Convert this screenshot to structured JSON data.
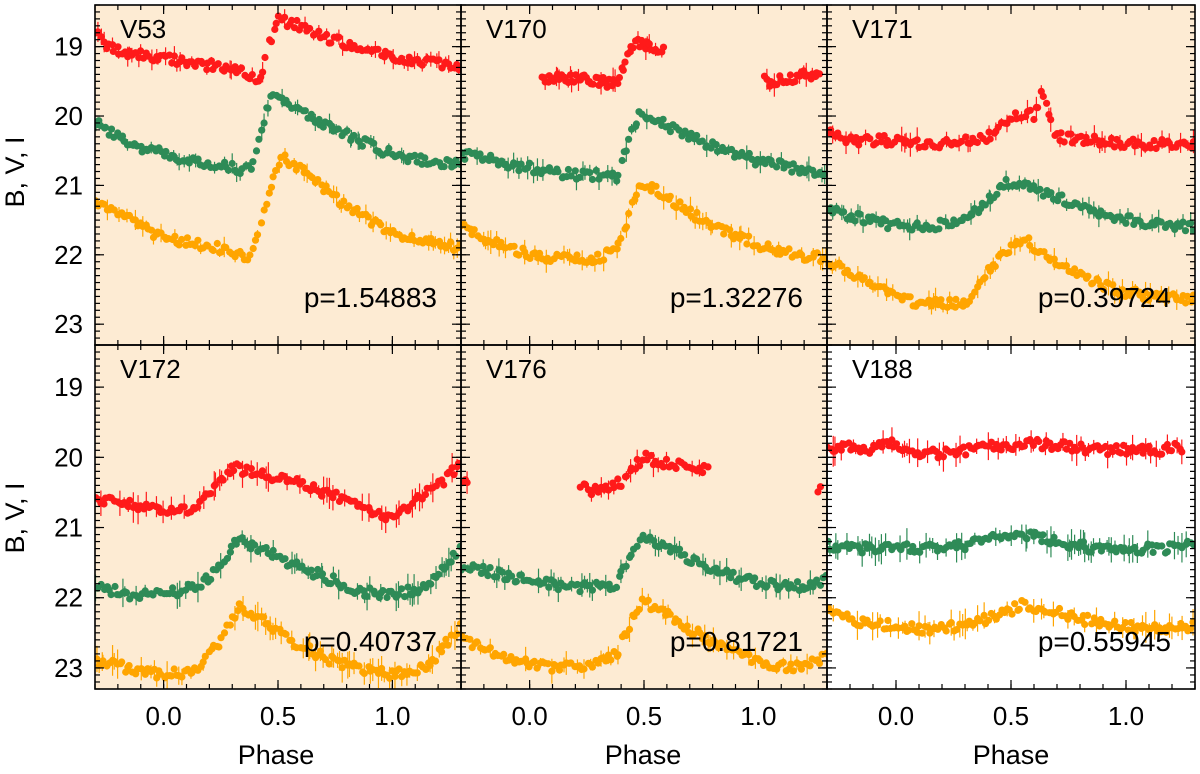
{
  "figure": {
    "x_axis_label": "Phase",
    "y_axis_label": "B, V, I",
    "colors": {
      "I_band": "#ff1a1a",
      "V_band": "#2e8b57",
      "B_band": "#ffa500",
      "shaded_background": "#fdebd3",
      "plain_background": "#ffffff"
    }
  },
  "chart_data": [
    {
      "type": "scatter",
      "star": "V53",
      "period_label": "p=1.54883",
      "period": 1.54883,
      "shaded": true,
      "xlim": [
        -0.3,
        1.3
      ],
      "ylim": [
        23.3,
        18.4
      ],
      "y_inverted": true,
      "xticks": [
        0.0,
        0.5,
        1.0
      ],
      "yticks": [
        19,
        20,
        21,
        22,
        23
      ],
      "light_curves": {
        "I": [
          [
            -0.3,
            18.8
          ],
          [
            -0.25,
            19.0
          ],
          [
            -0.15,
            19.1
          ],
          [
            0.0,
            19.15
          ],
          [
            0.15,
            19.25
          ],
          [
            0.3,
            19.3
          ],
          [
            0.36,
            19.4
          ],
          [
            0.42,
            19.45
          ],
          [
            0.46,
            19.0
          ],
          [
            0.5,
            18.62
          ],
          [
            0.6,
            18.7
          ],
          [
            0.7,
            18.85
          ],
          [
            0.82,
            19.0
          ],
          [
            0.95,
            19.1
          ],
          [
            1.1,
            19.2
          ],
          [
            1.3,
            19.3
          ]
        ],
        "V": [
          [
            -0.3,
            20.1
          ],
          [
            -0.2,
            20.3
          ],
          [
            -0.1,
            20.45
          ],
          [
            0.0,
            20.55
          ],
          [
            0.1,
            20.65
          ],
          [
            0.2,
            20.7
          ],
          [
            0.3,
            20.75
          ],
          [
            0.38,
            20.78
          ],
          [
            0.42,
            20.3
          ],
          [
            0.47,
            19.65
          ],
          [
            0.55,
            19.8
          ],
          [
            0.7,
            20.1
          ],
          [
            0.85,
            20.35
          ],
          [
            1.0,
            20.55
          ],
          [
            1.15,
            20.65
          ],
          [
            1.3,
            20.7
          ]
        ],
        "B": [
          [
            -0.3,
            21.2
          ],
          [
            -0.2,
            21.4
          ],
          [
            -0.1,
            21.6
          ],
          [
            0.0,
            21.75
          ],
          [
            0.15,
            21.85
          ],
          [
            0.3,
            21.95
          ],
          [
            0.38,
            22.05
          ],
          [
            0.42,
            21.6
          ],
          [
            0.47,
            21.0
          ],
          [
            0.52,
            20.6
          ],
          [
            0.65,
            20.9
          ],
          [
            0.8,
            21.3
          ],
          [
            0.95,
            21.6
          ],
          [
            1.1,
            21.8
          ],
          [
            1.3,
            21.9
          ]
        ]
      },
      "error_bar_size": 0.1
    },
    {
      "type": "scatter",
      "star": "V170",
      "period_label": "p=1.32276",
      "period": 1.32276,
      "shaded": true,
      "xlim": [
        -0.3,
        1.3
      ],
      "ylim": [
        23.3,
        18.4
      ],
      "y_inverted": true,
      "xticks": [
        0.0,
        0.5,
        1.0
      ],
      "yticks": [
        19,
        20,
        21,
        22,
        23
      ],
      "light_curves": {
        "I": [
          [
            0.05,
            19.5
          ],
          [
            0.15,
            19.45
          ],
          [
            0.22,
            19.45
          ],
          [
            0.3,
            19.5
          ],
          [
            0.38,
            19.55
          ],
          [
            0.45,
            18.95
          ],
          [
            0.5,
            18.95
          ],
          [
            0.56,
            19.05
          ],
          [
            1.05,
            19.5
          ],
          [
            1.15,
            19.45
          ],
          [
            1.2,
            19.4
          ],
          [
            1.27,
            19.45
          ]
        ],
        "V": [
          [
            -0.3,
            20.55
          ],
          [
            -0.2,
            20.6
          ],
          [
            -0.1,
            20.7
          ],
          [
            0.0,
            20.75
          ],
          [
            0.1,
            20.8
          ],
          [
            0.2,
            20.85
          ],
          [
            0.3,
            20.85
          ],
          [
            0.38,
            20.9
          ],
          [
            0.43,
            20.4
          ],
          [
            0.48,
            19.95
          ],
          [
            0.55,
            20.05
          ],
          [
            0.7,
            20.3
          ],
          [
            0.85,
            20.5
          ],
          [
            1.0,
            20.65
          ],
          [
            1.15,
            20.75
          ],
          [
            1.3,
            20.9
          ]
        ],
        "B": [
          [
            -0.3,
            21.6
          ],
          [
            -0.2,
            21.75
          ],
          [
            -0.1,
            21.9
          ],
          [
            0.0,
            22.0
          ],
          [
            0.1,
            22.05
          ],
          [
            0.2,
            22.05
          ],
          [
            0.3,
            22.05
          ],
          [
            0.38,
            21.9
          ],
          [
            0.43,
            21.5
          ],
          [
            0.48,
            21.0
          ],
          [
            0.55,
            21.05
          ],
          [
            0.7,
            21.4
          ],
          [
            0.85,
            21.65
          ],
          [
            1.0,
            21.85
          ],
          [
            1.15,
            22.0
          ],
          [
            1.3,
            22.05
          ]
        ]
      },
      "error_bar_size": 0.12
    },
    {
      "type": "scatter",
      "star": "V171",
      "period_label": "p=0.39724",
      "period": 0.39724,
      "shaded": true,
      "xlim": [
        -0.3,
        1.3
      ],
      "ylim": [
        23.3,
        18.4
      ],
      "y_inverted": true,
      "xticks": [
        0.0,
        0.5,
        1.0
      ],
      "yticks": [
        19,
        20,
        21,
        22,
        23
      ],
      "light_curves": {
        "I": [
          [
            -0.3,
            20.2
          ],
          [
            -0.2,
            20.35
          ],
          [
            -0.05,
            20.35
          ],
          [
            0.1,
            20.4
          ],
          [
            0.25,
            20.4
          ],
          [
            0.4,
            20.3
          ],
          [
            0.5,
            20.05
          ],
          [
            0.55,
            19.95
          ],
          [
            0.6,
            20.0
          ],
          [
            0.63,
            19.65
          ],
          [
            0.7,
            20.3
          ],
          [
            0.85,
            20.35
          ],
          [
            1.0,
            20.4
          ],
          [
            1.15,
            20.4
          ],
          [
            1.3,
            20.4
          ]
        ],
        "V": [
          [
            -0.3,
            21.35
          ],
          [
            -0.2,
            21.45
          ],
          [
            -0.05,
            21.55
          ],
          [
            0.1,
            21.6
          ],
          [
            0.25,
            21.55
          ],
          [
            0.38,
            21.3
          ],
          [
            0.47,
            20.95
          ],
          [
            0.55,
            20.95
          ],
          [
            0.65,
            21.1
          ],
          [
            0.8,
            21.3
          ],
          [
            0.95,
            21.45
          ],
          [
            1.1,
            21.55
          ],
          [
            1.3,
            21.6
          ]
        ],
        "B": [
          [
            -0.3,
            22.1
          ],
          [
            -0.15,
            22.35
          ],
          [
            0.0,
            22.6
          ],
          [
            0.1,
            22.7
          ],
          [
            0.2,
            22.7
          ],
          [
            0.3,
            22.7
          ],
          [
            0.4,
            22.2
          ],
          [
            0.5,
            21.9
          ],
          [
            0.55,
            21.75
          ],
          [
            0.65,
            22.0
          ],
          [
            0.8,
            22.3
          ],
          [
            0.95,
            22.5
          ],
          [
            1.1,
            22.6
          ],
          [
            1.3,
            22.65
          ]
        ]
      },
      "error_bar_size": 0.12
    },
    {
      "type": "scatter",
      "star": "V172",
      "period_label": "p=0.40737",
      "period": 0.40737,
      "shaded": true,
      "xlim": [
        -0.3,
        1.3
      ],
      "ylim": [
        23.3,
        18.4
      ],
      "y_inverted": true,
      "xticks": [
        0.0,
        0.5,
        1.0
      ],
      "yticks": [
        19,
        20,
        21,
        22,
        23
      ],
      "light_curves": {
        "I": [
          [
            -0.3,
            20.6
          ],
          [
            -0.2,
            20.65
          ],
          [
            -0.1,
            20.7
          ],
          [
            0.0,
            20.8
          ],
          [
            0.15,
            20.7
          ],
          [
            0.22,
            20.4
          ],
          [
            0.3,
            20.15
          ],
          [
            0.38,
            20.2
          ],
          [
            0.48,
            20.3
          ],
          [
            0.58,
            20.35
          ],
          [
            0.7,
            20.5
          ],
          [
            0.8,
            20.6
          ],
          [
            0.9,
            20.75
          ],
          [
            1.0,
            20.85
          ],
          [
            1.2,
            20.4
          ],
          [
            1.3,
            20.1
          ]
        ],
        "V": [
          [
            -0.3,
            21.85
          ],
          [
            -0.15,
            21.95
          ],
          [
            0.0,
            21.95
          ],
          [
            0.15,
            21.85
          ],
          [
            0.25,
            21.55
          ],
          [
            0.33,
            21.15
          ],
          [
            0.42,
            21.3
          ],
          [
            0.55,
            21.5
          ],
          [
            0.7,
            21.7
          ],
          [
            0.85,
            21.9
          ],
          [
            1.0,
            21.95
          ],
          [
            1.15,
            21.85
          ],
          [
            1.3,
            21.3
          ]
        ],
        "B": [
          [
            -0.3,
            22.9
          ],
          [
            -0.15,
            23.0
          ],
          [
            0.0,
            23.1
          ],
          [
            0.15,
            23.05
          ],
          [
            0.25,
            22.6
          ],
          [
            0.33,
            22.15
          ],
          [
            0.42,
            22.3
          ],
          [
            0.55,
            22.6
          ],
          [
            0.7,
            22.85
          ],
          [
            0.85,
            23.0
          ],
          [
            1.0,
            23.1
          ],
          [
            1.15,
            23.0
          ],
          [
            1.3,
            22.4
          ]
        ]
      },
      "error_bar_size": 0.15
    },
    {
      "type": "scatter",
      "star": "V176",
      "period_label": "p=0.81721",
      "period": 0.81721,
      "shaded": true,
      "xlim": [
        -0.3,
        1.3
      ],
      "ylim": [
        23.3,
        18.4
      ],
      "y_inverted": true,
      "xticks": [
        0.0,
        0.5,
        1.0
      ],
      "yticks": [
        19,
        20,
        21,
        22,
        23
      ],
      "light_curves": {
        "I": [
          [
            -0.3,
            20.3
          ],
          [
            0.25,
            20.45
          ],
          [
            0.32,
            20.5
          ],
          [
            0.4,
            20.35
          ],
          [
            0.45,
            20.15
          ],
          [
            0.5,
            20.0
          ],
          [
            0.55,
            20.05
          ],
          [
            0.65,
            20.1
          ],
          [
            0.75,
            20.15
          ],
          [
            1.28,
            20.45
          ]
        ],
        "V": [
          [
            -0.3,
            21.55
          ],
          [
            -0.15,
            21.65
          ],
          [
            0.0,
            21.75
          ],
          [
            0.15,
            21.85
          ],
          [
            0.3,
            21.85
          ],
          [
            0.38,
            21.8
          ],
          [
            0.43,
            21.5
          ],
          [
            0.49,
            21.1
          ],
          [
            0.55,
            21.2
          ],
          [
            0.7,
            21.45
          ],
          [
            0.85,
            21.65
          ],
          [
            1.0,
            21.8
          ],
          [
            1.15,
            21.85
          ],
          [
            1.3,
            21.75
          ]
        ],
        "B": [
          [
            -0.3,
            22.6
          ],
          [
            -0.15,
            22.8
          ],
          [
            0.0,
            22.95
          ],
          [
            0.15,
            23.0
          ],
          [
            0.3,
            22.95
          ],
          [
            0.38,
            22.8
          ],
          [
            0.43,
            22.45
          ],
          [
            0.49,
            22.05
          ],
          [
            0.55,
            22.15
          ],
          [
            0.7,
            22.45
          ],
          [
            0.85,
            22.7
          ],
          [
            1.0,
            22.9
          ],
          [
            1.15,
            23.0
          ],
          [
            1.3,
            22.85
          ]
        ]
      },
      "error_bar_size": 0.12
    },
    {
      "type": "scatter",
      "star": "V188",
      "period_label": "p=0.55945",
      "period": 0.55945,
      "shaded": false,
      "xlim": [
        -0.3,
        1.3
      ],
      "ylim": [
        23.3,
        18.4
      ],
      "y_inverted": true,
      "xticks": [
        0.0,
        0.5,
        1.0
      ],
      "yticks": [
        19,
        20,
        21,
        22,
        23
      ],
      "light_curves": {
        "I": [
          [
            -0.3,
            19.85
          ],
          [
            -0.2,
            19.85
          ],
          [
            -0.13,
            19.9
          ],
          [
            0.0,
            19.8
          ],
          [
            0.05,
            19.95
          ],
          [
            0.2,
            19.95
          ],
          [
            0.3,
            19.9
          ],
          [
            0.4,
            19.85
          ],
          [
            0.5,
            19.85
          ],
          [
            0.6,
            19.8
          ],
          [
            0.75,
            19.85
          ],
          [
            0.85,
            19.9
          ],
          [
            1.05,
            19.9
          ],
          [
            1.15,
            19.9
          ],
          [
            1.25,
            19.85
          ]
        ],
        "V": [
          [
            -0.3,
            21.25
          ],
          [
            -0.15,
            21.3
          ],
          [
            0.0,
            21.3
          ],
          [
            0.15,
            21.3
          ],
          [
            0.3,
            21.25
          ],
          [
            0.45,
            21.1
          ],
          [
            0.6,
            21.1
          ],
          [
            0.75,
            21.25
          ],
          [
            0.9,
            21.3
          ],
          [
            1.05,
            21.3
          ],
          [
            1.2,
            21.3
          ],
          [
            1.3,
            21.25
          ]
        ],
        "B": [
          [
            -0.3,
            22.2
          ],
          [
            -0.15,
            22.35
          ],
          [
            0.0,
            22.4
          ],
          [
            0.15,
            22.45
          ],
          [
            0.3,
            22.4
          ],
          [
            0.45,
            22.25
          ],
          [
            0.55,
            22.1
          ],
          [
            0.65,
            22.15
          ],
          [
            0.8,
            22.3
          ],
          [
            0.95,
            22.4
          ],
          [
            1.1,
            22.45
          ],
          [
            1.3,
            22.4
          ]
        ]
      },
      "error_bar_size": 0.15
    }
  ]
}
